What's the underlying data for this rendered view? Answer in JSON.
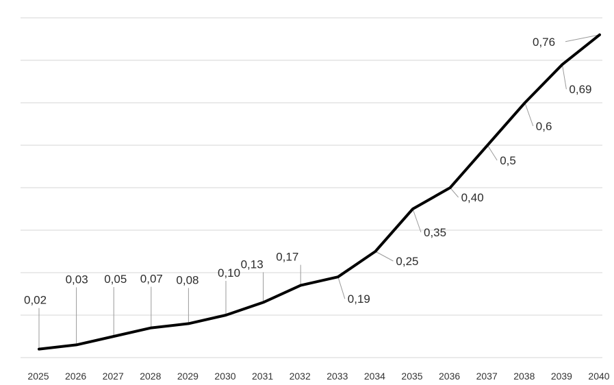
{
  "chart_data": {
    "type": "line",
    "title": "",
    "xlabel": "",
    "ylabel": "",
    "categories": [
      "2025",
      "2026",
      "2027",
      "2028",
      "2029",
      "2030",
      "2031",
      "2032",
      "2033",
      "2034",
      "2035",
      "2036",
      "2037",
      "2038",
      "2039",
      "2040"
    ],
    "series": [
      {
        "values": [
          0.02,
          0.03,
          0.05,
          0.07,
          0.08,
          0.1,
          0.13,
          0.17,
          0.19,
          0.25,
          0.35,
          0.4,
          0.5,
          0.6,
          0.69,
          0.76
        ],
        "labels": [
          "0,02",
          "0,03",
          "0,05",
          "0,07",
          "0,08",
          "0,10",
          "0,13",
          "0,17",
          "0,19",
          "0,25",
          "0,35",
          "0,40",
          "0,5",
          "0,6",
          "0,69",
          "0,76"
        ],
        "color": "#000000"
      }
    ],
    "ylim": [
      0,
      0.8
    ],
    "grid": true,
    "legend": "none",
    "y_tick_labels_shown": false
  }
}
